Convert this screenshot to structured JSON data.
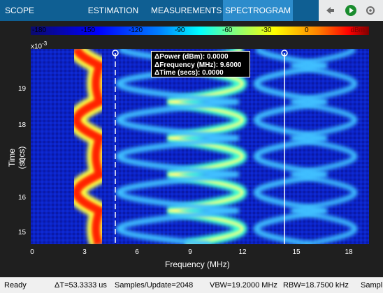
{
  "tabs": [
    {
      "label": "SCOPE",
      "active": false
    },
    {
      "label": "ESTIMATION",
      "active": false
    },
    {
      "label": "MEASUREMENTS",
      "active": false
    },
    {
      "label": "SPECTROGRAM",
      "active": true
    }
  ],
  "toolbar": {
    "icons": [
      "pin-icon",
      "run-icon",
      "settings-icon"
    ]
  },
  "colorbar": {
    "ticks": [
      "-180",
      "-150",
      "-120",
      "-90",
      "-60",
      "-30",
      "0"
    ],
    "unit": "dBm"
  },
  "axes": {
    "exponent": "x10",
    "exponent_power": "-3",
    "yticks": [
      "19",
      "18",
      "17",
      "16",
      "15"
    ],
    "xticks": [
      "0",
      "3",
      "6",
      "9",
      "12",
      "15",
      "18"
    ],
    "xlabel": "Frequency (MHz)",
    "ylabel": "Time (secs)"
  },
  "cursor_readout": {
    "power": "ΔPower (dBm): 0.0000",
    "frequency": "ΔFrequency (MHz): 9.6000",
    "time": "ΔTime (secs): 0.0000"
  },
  "status": {
    "state": "Ready",
    "delta_t": "ΔT=53.3333 us",
    "samples": "Samples/Update=2048",
    "vbw": "VBW=19.2000 MHz",
    "rbw": "RBW=18.7500 kHz",
    "sample_rate": "Sampl"
  },
  "colors": {
    "toolstrip": "#0f5f93",
    "active_tab": "#2c8ccc",
    "plot_bg": "#0b1fbd"
  },
  "chart_data": {
    "type": "heatmap",
    "x_unit": "MHz",
    "y_unit": "secs (x10^-3)",
    "xlim": [
      0,
      19.2
    ],
    "ylim": [
      14.7,
      19.9
    ],
    "cursors_mhz": [
      4.8,
      14.4
    ]
  }
}
